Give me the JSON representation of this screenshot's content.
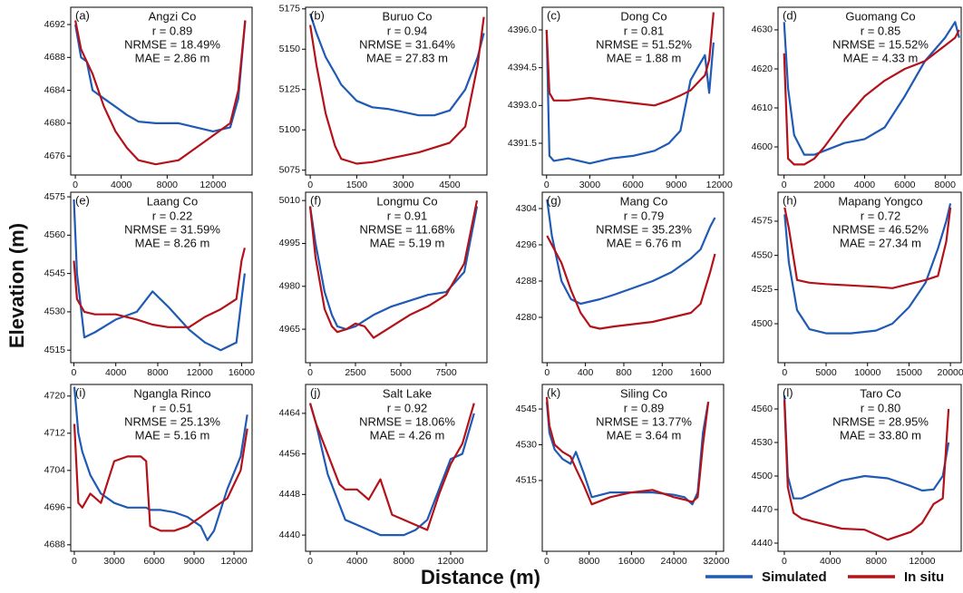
{
  "xlabel": "Distance (m)",
  "ylabel": "Elevation (m)",
  "chart_data": [
    {
      "type": "line",
      "panel_label": "(a)",
      "title": "Angzi Co",
      "annotations": [
        "r = 0.89",
        "NRMSE = 18.49%",
        "MAE = 2.86 m"
      ],
      "x": [
        0,
        500,
        1000,
        1500,
        2500,
        3500,
        4500,
        5500,
        7000,
        9000,
        10500,
        12000,
        13500,
        14200,
        14800
      ],
      "series": [
        {
          "name": "Simulated",
          "color": "#1f5ab4",
          "values": [
            4692,
            4688,
            4687.5,
            4684,
            4683,
            4682,
            4681,
            4680.2,
            4680,
            4680,
            4679.5,
            4679,
            4679.5,
            4683,
            4692.5
          ]
        },
        {
          "name": "In situ",
          "color": "#b4121a",
          "values": [
            4692.5,
            4689,
            4687.5,
            4686,
            4682,
            4679,
            4677,
            4675.5,
            4675,
            4675.5,
            4677,
            4678.5,
            4680,
            4684,
            4692.5
          ]
        }
      ],
      "xlim": [
        -400,
        15400
      ],
      "xticks": [
        0,
        4000,
        8000,
        12000
      ],
      "ylim": [
        4673.7,
        4694.1
      ],
      "yticks": [
        4676,
        4680,
        4684,
        4688,
        4692
      ]
    },
    {
      "type": "line",
      "panel_label": "(b)",
      "title": "Buruo Co",
      "annotations": [
        "r = 0.94",
        "NRMSE = 31.64%",
        "MAE = 27.83 m"
      ],
      "x": [
        0,
        200,
        500,
        800,
        1000,
        1500,
        2000,
        2500,
        3000,
        3500,
        4000,
        4500,
        5000,
        5400,
        5600
      ],
      "series": [
        {
          "name": "Simulated",
          "color": "#1f5ab4",
          "values": [
            5172,
            5160,
            5145,
            5135,
            5128,
            5118,
            5114,
            5113,
            5111,
            5109,
            5109,
            5112,
            5125,
            5145,
            5160
          ]
        },
        {
          "name": "In situ",
          "color": "#b4121a",
          "values": [
            5165,
            5140,
            5110,
            5090,
            5082,
            5079,
            5080,
            5082,
            5084,
            5086,
            5089,
            5092,
            5102,
            5140,
            5170
          ]
        }
      ],
      "xlim": [
        -150,
        5700
      ],
      "xticks": [
        0,
        1500,
        3000,
        4500
      ],
      "ylim": [
        5072,
        5176
      ],
      "yticks": [
        5075,
        5100,
        5125,
        5150,
        5175
      ]
    },
    {
      "type": "line",
      "panel_label": "(c)",
      "title": "Dong Co",
      "annotations": [
        "r = 0.81",
        "NRMSE = 51.52%",
        "MAE = 1.88 m"
      ],
      "x": [
        0,
        200,
        500,
        1500,
        3000,
        4500,
        6000,
        7500,
        8500,
        9300,
        10000,
        10500,
        11000,
        11300,
        11600
      ],
      "series": [
        {
          "name": "Simulated",
          "color": "#1f5ab4",
          "values": [
            4396,
            4391,
            4390.8,
            4390.9,
            4390.7,
            4390.9,
            4391,
            4391.2,
            4391.5,
            4392,
            4394,
            4394.5,
            4395,
            4393.5,
            4395.5
          ]
        },
        {
          "name": "In situ",
          "color": "#b4121a",
          "values": [
            4396,
            4393.5,
            4393.2,
            4393.2,
            4393.3,
            4393.2,
            4393.1,
            4393,
            4393.2,
            4393.4,
            4393.6,
            4393.9,
            4394.2,
            4394.8,
            4396.7
          ]
        }
      ],
      "xlim": [
        -300,
        12300
      ],
      "xticks": [
        0,
        3000,
        6000,
        9000,
        12000
      ],
      "ylim": [
        4390.24,
        4396.9
      ],
      "yticks": [
        4391.5,
        {
          "value": 4393,
          "label": "4393.0"
        },
        4394.5,
        {
          "value": 4396,
          "label": "4396.0"
        }
      ]
    },
    {
      "type": "line",
      "panel_label": "(d)",
      "title": "Guomang Co",
      "annotations": [
        "r = 0.85",
        "NRMSE = 15.52%",
        "MAE = 4.33 m"
      ],
      "x": [
        0,
        200,
        500,
        1000,
        1500,
        2000,
        3000,
        4000,
        5000,
        6000,
        7000,
        7500,
        8000,
        8500,
        8700
      ],
      "series": [
        {
          "name": "Simulated",
          "color": "#1f5ab4",
          "values": [
            4632,
            4615,
            4603,
            4598,
            4598,
            4599,
            4601,
            4602,
            4605,
            4613,
            4622,
            4625,
            4628,
            4632,
            4628
          ]
        },
        {
          "name": "In situ",
          "color": "#b4121a",
          "values": [
            4624,
            4597,
            4595.5,
            4595.5,
            4597,
            4600,
            4607,
            4613,
            4617,
            4620,
            4622,
            4624,
            4626,
            4628,
            4630
          ]
        }
      ],
      "xlim": [
        -300,
        8800
      ],
      "xticks": [
        0,
        2000,
        4000,
        6000,
        8000
      ],
      "ylim": [
        4592.8,
        4635.8
      ],
      "yticks": [
        4600,
        4610,
        4620,
        4630
      ]
    },
    {
      "type": "line",
      "panel_label": "(e)",
      "title": "Laang Co",
      "annotations": [
        "r = 0.22",
        "NRMSE = 31.59%",
        "MAE = 8.26 m"
      ],
      "x": [
        0,
        300,
        1000,
        2000,
        4000,
        6000,
        7500,
        9000,
        11000,
        12500,
        14000,
        15500,
        16000,
        16300
      ],
      "series": [
        {
          "name": "Simulated",
          "color": "#1f5ab4",
          "values": [
            4574,
            4545,
            4520,
            4522,
            4527,
            4530,
            4538,
            4532,
            4523,
            4518,
            4515,
            4518,
            4535,
            4545
          ]
        },
        {
          "name": "In situ",
          "color": "#b4121a",
          "values": [
            4550,
            4535,
            4530,
            4529,
            4529,
            4527,
            4525,
            4524,
            4524,
            4528,
            4531,
            4535,
            4550,
            4555
          ]
        }
      ],
      "xlim": [
        -300,
        17000
      ],
      "xticks": [
        0,
        4000,
        8000,
        12000,
        16000
      ],
      "ylim": [
        4510.1,
        4576.8
      ],
      "yticks": [
        4515,
        4530,
        4545,
        4560,
        4575
      ]
    },
    {
      "type": "line",
      "panel_label": "(f)",
      "title": "Longmu Co",
      "annotations": [
        "r = 0.91",
        "NRMSE = 11.68%",
        "MAE = 5.19 m"
      ],
      "x": [
        0,
        300,
        800,
        1200,
        1500,
        2000,
        2500,
        3000,
        3500,
        4500,
        5500,
        6500,
        7500,
        8500,
        9200
      ],
      "series": [
        {
          "name": "Simulated",
          "color": "#1f5ab4",
          "values": [
            5008,
            4995,
            4978,
            4970,
            4966,
            4965,
            4966,
            4968,
            4970,
            4973,
            4975,
            4977,
            4978,
            4985,
            5008
          ]
        },
        {
          "name": "In situ",
          "color": "#b4121a",
          "values": [
            5008,
            4990,
            4972,
            4966,
            4964,
            4965,
            4967,
            4966,
            4962,
            4966,
            4970,
            4973,
            4977,
            4988,
            5010
          ]
        }
      ],
      "xlim": [
        -250,
        9750
      ],
      "xticks": [
        0,
        2500,
        5000,
        7500
      ],
      "ylim": [
        4953.3,
        5012.9
      ],
      "yticks": [
        4965,
        4980,
        4995,
        5010
      ]
    },
    {
      "type": "line",
      "panel_label": "(g)",
      "title": "Mang Co",
      "annotations": [
        "r = 0.79",
        "NRMSE = 35.23%",
        "MAE = 6.76 m"
      ],
      "x": [
        0,
        50,
        150,
        250,
        350,
        450,
        550,
        700,
        900,
        1100,
        1300,
        1500,
        1600,
        1700,
        1750
      ],
      "series": [
        {
          "name": "Simulated",
          "color": "#1f5ab4",
          "values": [
            4306,
            4298,
            4288,
            4284,
            4283,
            4283.5,
            4284,
            4285,
            4286.5,
            4288,
            4290,
            4293,
            4295,
            4300,
            4302
          ]
        },
        {
          "name": "In situ",
          "color": "#b4121a",
          "values": [
            4298,
            4296,
            4292,
            4286,
            4281,
            4278,
            4277.5,
            4278,
            4278.5,
            4279,
            4280,
            4281,
            4283,
            4290,
            4294
          ]
        }
      ],
      "xlim": [
        -50,
        1840
      ],
      "xticks": [
        0,
        400,
        800,
        1200,
        1600
      ],
      "ylim": [
        4270,
        4307.6
      ],
      "yticks": [
        4280,
        4288,
        4296,
        4304
      ]
    },
    {
      "type": "line",
      "panel_label": "(h)",
      "title": "Mapang Yongco",
      "annotations": [
        "r = 0.72",
        "NRMSE = 46.52%",
        "MAE = 27.34 m"
      ],
      "x": [
        0,
        500,
        1500,
        3000,
        5000,
        8000,
        11000,
        13000,
        15000,
        17000,
        18500,
        19500,
        20000
      ],
      "series": [
        {
          "name": "Simulated",
          "color": "#1f5ab4",
          "values": [
            4580,
            4545,
            4510,
            4496,
            4493,
            4493,
            4495,
            4500,
            4512,
            4530,
            4555,
            4575,
            4588
          ]
        },
        {
          "name": "In situ",
          "color": "#b4121a",
          "values": [
            4585,
            4570,
            4532,
            4530,
            4529,
            4528,
            4527,
            4526,
            4529,
            4532,
            4535,
            4560,
            4585
          ]
        }
      ],
      "xlim": [
        -800,
        21300
      ],
      "xticks": [
        0,
        5000,
        10000,
        15000,
        20000
      ],
      "ylim": [
        4471.5,
        4596.2
      ],
      "yticks": [
        4500,
        4525,
        4550,
        4575
      ]
    },
    {
      "type": "line",
      "panel_label": "(i)",
      "title": "Ngangla Rinco",
      "annotations": [
        "r = 0.51",
        "NRMSE = 25.13%",
        "MAE = 5.16 m"
      ],
      "x": [
        0,
        300,
        600,
        1200,
        2000,
        3000,
        4000,
        5000,
        5400,
        5700,
        6500,
        7500,
        8500,
        9500,
        10000,
        10500,
        11500,
        12500,
        13000
      ],
      "series": [
        {
          "name": "Simulated",
          "color": "#1f5ab4",
          "values": [
            4722,
            4712,
            4708,
            4703,
            4699,
            4697,
            4696,
            4696,
            4696,
            4695.5,
            4695.5,
            4695,
            4694,
            4692,
            4689,
            4691,
            4700,
            4707,
            4716
          ]
        },
        {
          "name": "In situ",
          "color": "#b4121a",
          "values": [
            4714,
            4697,
            4696,
            4699,
            4697,
            4706,
            4707,
            4707,
            4706,
            4692,
            4691,
            4691,
            4692,
            4694,
            4695,
            4696,
            4698,
            4704,
            4713
          ]
        }
      ],
      "xlim": [
        -270,
        13360
      ],
      "xticks": [
        0,
        3000,
        6000,
        9000,
        12000
      ],
      "ylim": [
        4686.6,
        4722.5
      ],
      "yticks": [
        4688,
        4696,
        4704,
        4712,
        4720
      ]
    },
    {
      "type": "line",
      "panel_label": "(j)",
      "title": "Salt Lake",
      "annotations": [
        "r = 0.92",
        "NRMSE = 18.06%",
        "MAE = 4.26 m"
      ],
      "x": [
        0,
        500,
        1500,
        2500,
        3000,
        4000,
        5000,
        6000,
        7000,
        8000,
        9000,
        10000,
        11000,
        12000,
        13000,
        14000
      ],
      "series": [
        {
          "name": "Simulated",
          "color": "#1f5ab4",
          "values": [
            4466,
            4462,
            4452,
            4446,
            4443,
            4442,
            4441,
            4440,
            4440,
            4440,
            4441,
            4443,
            4449,
            4455,
            4456,
            4464
          ]
        },
        {
          "name": "In situ",
          "color": "#b4121a",
          "values": [
            4466,
            4462,
            4456,
            4450,
            4449,
            4449,
            4447,
            4451,
            4444,
            4443,
            4442,
            4441,
            4448,
            4454,
            4458,
            4466
          ]
        }
      ],
      "xlim": [
        -390,
        15100
      ],
      "xticks": [
        0,
        4000,
        8000,
        12000
      ],
      "ylim": [
        4436.8,
        4469.7
      ],
      "yticks": [
        4440,
        4448,
        4456,
        4464
      ]
    },
    {
      "type": "line",
      "panel_label": "(k)",
      "title": "Siling Co",
      "annotations": [
        "r = 0.89",
        "NRMSE = 13.77%",
        "MAE = 3.64 m"
      ],
      "x": [
        0,
        500,
        1500,
        3000,
        4500,
        5500,
        7000,
        8500,
        12000,
        16000,
        20000,
        24000,
        26000,
        27500,
        28500,
        29500,
        30500
      ],
      "series": [
        {
          "name": "Simulated",
          "color": "#1f5ab4",
          "values": [
            4548,
            4535,
            4528,
            4524,
            4522,
            4527,
            4518,
            4508,
            4510,
            4510,
            4510,
            4509,
            4508,
            4505,
            4510,
            4535,
            4548
          ]
        },
        {
          "name": "In situ",
          "color": "#b4121a",
          "values": [
            4550,
            4538,
            4530,
            4527,
            4525,
            4520,
            4513,
            4505,
            4508,
            4510,
            4511,
            4508,
            4507,
            4506,
            4508,
            4530,
            4548
          ]
        }
      ],
      "xlim": [
        -850,
        33400
      ],
      "xticks": [
        0,
        8000,
        16000,
        24000,
        32000
      ],
      "ylim": [
        4485.3,
        4555.3
      ],
      "yticks": [
        4515,
        4530,
        4545
      ]
    },
    {
      "type": "line",
      "panel_label": "(l)",
      "title": "Taro Co",
      "annotations": [
        "r = 0.80",
        "NRMSE = 28.95%",
        "MAE = 33.80 m"
      ],
      "x": [
        0,
        300,
        800,
        1500,
        3000,
        5000,
        7000,
        9000,
        11000,
        12000,
        13000,
        13800,
        14300
      ],
      "series": [
        {
          "name": "Simulated",
          "color": "#1f5ab4",
          "values": [
            4572,
            4500,
            4480,
            4480,
            4487,
            4496,
            4500,
            4498,
            4491,
            4487,
            4488,
            4500,
            4530
          ]
        },
        {
          "name": "In situ",
          "color": "#b4121a",
          "values": [
            4568,
            4490,
            4467,
            4462,
            4458,
            4453,
            4452,
            4443,
            4450,
            4458,
            4475,
            4480,
            4560
          ]
        }
      ],
      "xlim": [
        -550,
        15400
      ],
      "xticks": [
        0,
        4000,
        8000,
        12000
      ],
      "ylim": [
        4432.7,
        4581.9
      ],
      "yticks": [
        4440,
        4470,
        4500,
        4530,
        4560
      ]
    }
  ]
}
